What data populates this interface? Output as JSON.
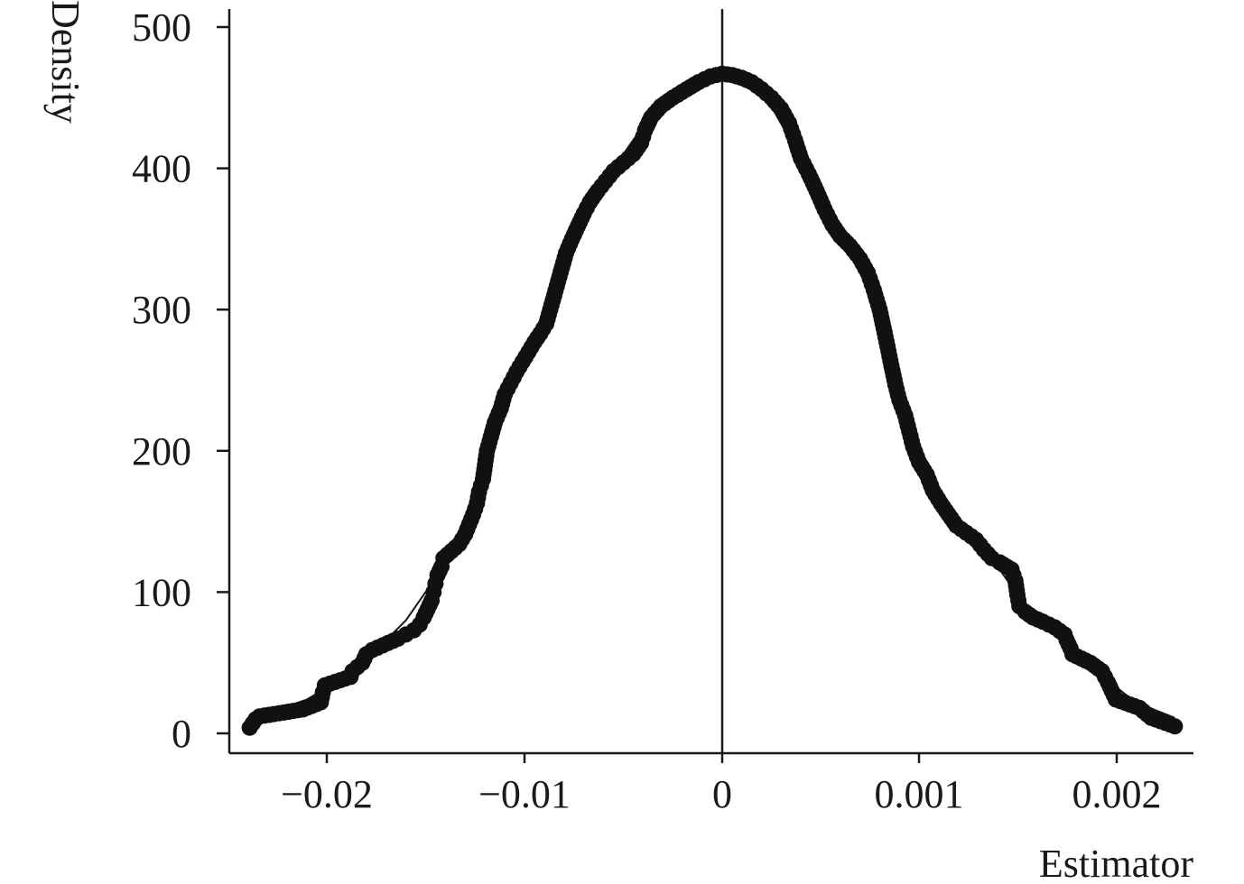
{
  "chart_data": {
    "type": "scatter",
    "title": "",
    "xlabel": "Estimator",
    "ylabel": "Density",
    "x_tick_labels": [
      "−0.02",
      "−0.01",
      "0",
      "0.001",
      "0.002"
    ],
    "y_ticks": [
      0,
      100,
      200,
      300,
      400,
      500
    ],
    "ylim": [
      0,
      500
    ],
    "reference_line": "0",
    "grid": false,
    "legend": "none",
    "series": [
      {
        "points": [
          {
            "x": -0.0239,
            "y": 4
          },
          {
            "x": -0.0236,
            "y": 10
          },
          {
            "x": -0.0234,
            "y": 12
          },
          {
            "x": -0.0212,
            "y": 17
          },
          {
            "x": -0.0203,
            "y": 22
          },
          {
            "x": -0.0202,
            "y": 29
          },
          {
            "x": -0.0201,
            "y": 34
          },
          {
            "x": -0.0188,
            "y": 40
          },
          {
            "x": -0.0187,
            "y": 44
          },
          {
            "x": -0.0182,
            "y": 50
          },
          {
            "x": -0.018,
            "y": 56
          },
          {
            "x": -0.0177,
            "y": 59
          },
          {
            "x": -0.0169,
            "y": 64
          },
          {
            "x": -0.0164,
            "y": 67
          },
          {
            "x": -0.016,
            "y": 70
          },
          {
            "x": -0.0156,
            "y": 73
          },
          {
            "x": -0.0153,
            "y": 77
          },
          {
            "x": -0.0151,
            "y": 82
          },
          {
            "x": -0.0149,
            "y": 88
          },
          {
            "x": -0.0147,
            "y": 94
          },
          {
            "x": -0.0146,
            "y": 100
          },
          {
            "x": -0.0145,
            "y": 106
          },
          {
            "x": -0.0144,
            "y": 112
          },
          {
            "x": -0.0142,
            "y": 118
          },
          {
            "x": -0.0141,
            "y": 124
          },
          {
            "x": -0.0137,
            "y": 129
          },
          {
            "x": -0.0133,
            "y": 134
          },
          {
            "x": -0.013,
            "y": 141
          },
          {
            "x": -0.0128,
            "y": 148
          },
          {
            "x": -0.0126,
            "y": 155
          },
          {
            "x": -0.0124,
            "y": 163
          },
          {
            "x": -0.0123,
            "y": 171
          },
          {
            "x": -0.0121,
            "y": 180
          },
          {
            "x": -0.012,
            "y": 190
          },
          {
            "x": -0.0119,
            "y": 200
          },
          {
            "x": -0.0117,
            "y": 210
          },
          {
            "x": -0.0115,
            "y": 220
          },
          {
            "x": -0.0112,
            "y": 230
          },
          {
            "x": -0.011,
            "y": 240
          },
          {
            "x": -0.0107,
            "y": 248
          },
          {
            "x": -0.0104,
            "y": 256
          },
          {
            "x": -0.0101,
            "y": 263
          },
          {
            "x": -0.0098,
            "y": 270
          },
          {
            "x": -0.0095,
            "y": 277
          },
          {
            "x": -0.0092,
            "y": 283
          },
          {
            "x": -0.0089,
            "y": 290
          },
          {
            "x": -0.0087,
            "y": 300
          },
          {
            "x": -0.0085,
            "y": 310
          },
          {
            "x": -0.0083,
            "y": 320
          },
          {
            "x": -0.0081,
            "y": 330
          },
          {
            "x": -0.0079,
            "y": 340
          },
          {
            "x": -0.0076,
            "y": 350
          },
          {
            "x": -0.0073,
            "y": 359
          },
          {
            "x": -0.007,
            "y": 368
          },
          {
            "x": -0.0067,
            "y": 376
          },
          {
            "x": -0.0063,
            "y": 384
          },
          {
            "x": -0.0059,
            "y": 391
          },
          {
            "x": -0.0055,
            "y": 398
          },
          {
            "x": -0.005,
            "y": 404
          },
          {
            "x": -0.0045,
            "y": 410
          },
          {
            "x": -0.0041,
            "y": 418
          },
          {
            "x": -0.0039,
            "y": 427
          },
          {
            "x": -0.0036,
            "y": 436
          },
          {
            "x": -0.0031,
            "y": 444
          },
          {
            "x": -0.0025,
            "y": 450
          },
          {
            "x": -0.0018,
            "y": 456
          },
          {
            "x": -0.0012,
            "y": 461
          },
          {
            "x": -0.0006,
            "y": 465
          },
          {
            "x": 0,
            "y": 467
          },
          {
            "x": 5e-05,
            "y": 466
          },
          {
            "x": 0.0001,
            "y": 464
          },
          {
            "x": 0.00015,
            "y": 461
          },
          {
            "x": 0.0002,
            "y": 456
          },
          {
            "x": 0.00025,
            "y": 450
          },
          {
            "x": 0.0003,
            "y": 442
          },
          {
            "x": 0.00034,
            "y": 432
          },
          {
            "x": 0.00037,
            "y": 420
          },
          {
            "x": 0.0004,
            "y": 407
          },
          {
            "x": 0.00044,
            "y": 396
          },
          {
            "x": 0.00048,
            "y": 384
          },
          {
            "x": 0.00052,
            "y": 371
          },
          {
            "x": 0.00056,
            "y": 360
          },
          {
            "x": 0.0006,
            "y": 352
          },
          {
            "x": 0.00065,
            "y": 345
          },
          {
            "x": 0.0007,
            "y": 336
          },
          {
            "x": 0.00074,
            "y": 326
          },
          {
            "x": 0.00077,
            "y": 314
          },
          {
            "x": 0.0008,
            "y": 300
          },
          {
            "x": 0.00082,
            "y": 287
          },
          {
            "x": 0.00084,
            "y": 274
          },
          {
            "x": 0.00086,
            "y": 260
          },
          {
            "x": 0.00088,
            "y": 247
          },
          {
            "x": 0.0009,
            "y": 236
          },
          {
            "x": 0.00093,
            "y": 225
          },
          {
            "x": 0.00095,
            "y": 214
          },
          {
            "x": 0.00097,
            "y": 203
          },
          {
            "x": 0.001,
            "y": 192
          },
          {
            "x": 0.00104,
            "y": 183
          },
          {
            "x": 0.00107,
            "y": 172
          },
          {
            "x": 0.00111,
            "y": 163
          },
          {
            "x": 0.00115,
            "y": 155
          },
          {
            "x": 0.00119,
            "y": 147
          },
          {
            "x": 0.00124,
            "y": 142
          },
          {
            "x": 0.00129,
            "y": 137
          },
          {
            "x": 0.00133,
            "y": 130
          },
          {
            "x": 0.00137,
            "y": 124
          },
          {
            "x": 0.00141,
            "y": 121
          },
          {
            "x": 0.00147,
            "y": 116
          },
          {
            "x": 0.00149,
            "y": 108
          },
          {
            "x": 0.0015,
            "y": 98
          },
          {
            "x": 0.00151,
            "y": 90
          },
          {
            "x": 0.00154,
            "y": 86
          },
          {
            "x": 0.00158,
            "y": 82
          },
          {
            "x": 0.00163,
            "y": 79
          },
          {
            "x": 0.00169,
            "y": 75
          },
          {
            "x": 0.00174,
            "y": 70
          },
          {
            "x": 0.00175,
            "y": 66
          },
          {
            "x": 0.00177,
            "y": 60
          },
          {
            "x": 0.00178,
            "y": 56
          },
          {
            "x": 0.00187,
            "y": 50
          },
          {
            "x": 0.00193,
            "y": 44
          },
          {
            "x": 0.00196,
            "y": 36
          },
          {
            "x": 0.00198,
            "y": 30
          },
          {
            "x": 0.002,
            "y": 24
          },
          {
            "x": 0.00212,
            "y": 18
          },
          {
            "x": 0.00218,
            "y": 11
          },
          {
            "x": 0.0023,
            "y": 5
          }
        ]
      },
      {
        "kind": "line",
        "points": [
          {
            "x": -0.0239,
            "y": 10
          },
          {
            "x": -0.021,
            "y": 24
          },
          {
            "x": -0.0185,
            "y": 45
          },
          {
            "x": -0.016,
            "y": 80
          },
          {
            "x": -0.0145,
            "y": 110
          },
          {
            "x": -0.0135,
            "y": 131
          },
          {
            "x": -0.012,
            "y": 190
          },
          {
            "x": -0.01,
            "y": 265
          },
          {
            "x": -0.008,
            "y": 335
          },
          {
            "x": -0.006,
            "y": 390
          },
          {
            "x": -0.004,
            "y": 430
          },
          {
            "x": -0.002,
            "y": 455
          },
          {
            "x": 0,
            "y": 467
          },
          {
            "x": 0.0002,
            "y": 456
          },
          {
            "x": 0.0004,
            "y": 407
          },
          {
            "x": 0.0006,
            "y": 352
          },
          {
            "x": 0.0008,
            "y": 300
          },
          {
            "x": 0.001,
            "y": 192
          },
          {
            "x": 0.0012,
            "y": 147
          },
          {
            "x": 0.0014,
            "y": 118
          },
          {
            "x": 0.00155,
            "y": 88
          },
          {
            "x": 0.0017,
            "y": 68
          },
          {
            "x": 0.0019,
            "y": 44
          },
          {
            "x": 0.0021,
            "y": 22
          },
          {
            "x": 0.0023,
            "y": 11
          }
        ]
      }
    ]
  }
}
